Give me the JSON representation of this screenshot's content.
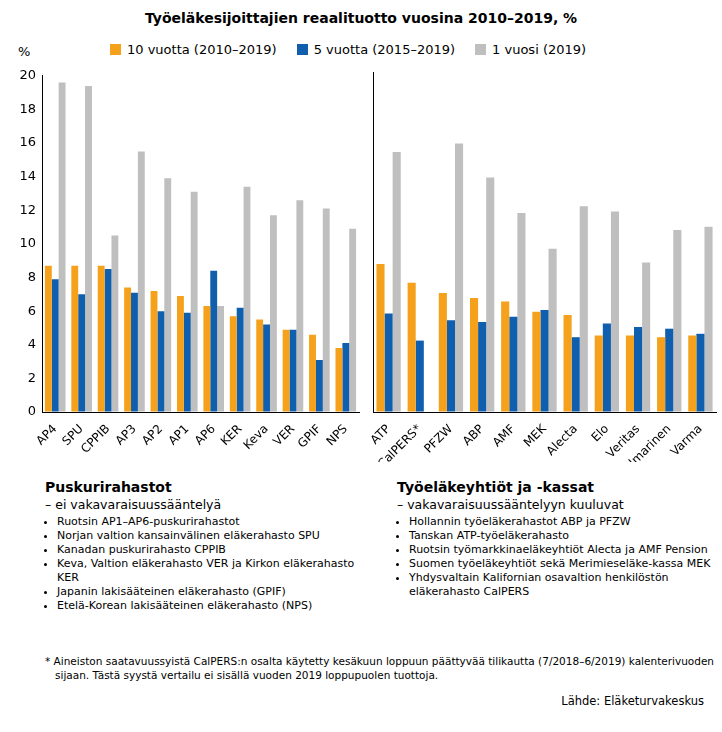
{
  "title": "Työeläkesijoittajien reaalituotto vuosina 2010–2019, %",
  "chart_data": [
    {
      "type": "bar",
      "ylabel": "%",
      "categories": [
        "AP4",
        "SPU",
        "CPPIB",
        "AP3",
        "AP2",
        "AP1",
        "AP6",
        "KER",
        "Keva",
        "VER",
        "GPIF",
        "NPS"
      ],
      "series": [
        {
          "name": "10 vuotta (2010–2019)",
          "color": "#f5a11c",
          "values": [
            8.7,
            8.7,
            8.7,
            7.4,
            7.2,
            6.9,
            6.3,
            5.7,
            5.5,
            4.9,
            4.6,
            3.8
          ]
        },
        {
          "name": "5 vuotta (2015–2019)",
          "color": "#0f5fae",
          "values": [
            7.9,
            7.0,
            8.5,
            7.1,
            6.0,
            5.9,
            8.4,
            6.2,
            5.2,
            4.9,
            3.1,
            4.1
          ]
        },
        {
          "name": "1 vuosi (2019)",
          "color": "#bfbfbf",
          "values": [
            19.6,
            19.4,
            10.5,
            15.5,
            13.9,
            13.1,
            6.3,
            13.4,
            11.7,
            12.6,
            12.1,
            10.9
          ]
        }
      ],
      "ylim": [
        0,
        20
      ],
      "yticks": [
        0,
        2,
        4,
        6,
        8,
        10,
        12,
        14,
        16,
        18,
        20
      ],
      "grid": false,
      "legend": "top",
      "caption": {
        "title": "Puskurirahastot",
        "subtitle": "– ei vakavaraisuussääntelyä",
        "items": [
          "Ruotsin AP1–AP6-puskurirahastot",
          "Norjan valtion kansainvälinen eläkerahasto SPU",
          "Kanadan puskurirahasto CPPIB",
          "Keva, Valtion eläkerahasto VER ja Kirkon eläkerahasto KER",
          "Japanin lakisääteinen eläkerahasto (GPIF)",
          "Etelä-Korean lakisääteinen eläkerahasto (NPS)"
        ]
      }
    },
    {
      "type": "bar",
      "categories": [
        "ATP",
        "CalPERS*",
        "PFZW",
        "ABP",
        "AMF",
        "MEK",
        "Alecta",
        "Elo",
        "Veritas",
        "Ilmarinen",
        "Varma"
      ],
      "series": [
        {
          "name": "10 vuotta (2010–2019)",
          "color": "#f5a11c",
          "values": [
            8.7,
            7.6,
            7.0,
            6.7,
            6.5,
            5.9,
            5.7,
            4.5,
            4.5,
            4.4,
            4.5
          ]
        },
        {
          "name": "5 vuotta (2015–2019)",
          "color": "#0f5fae",
          "values": [
            5.8,
            4.2,
            5.4,
            5.3,
            5.6,
            6.0,
            4.4,
            5.2,
            5.0,
            4.9,
            4.6
          ]
        },
        {
          "name": "1 vuosi (2019)",
          "color": "#bfbfbf",
          "values": [
            15.3,
            null,
            15.8,
            13.8,
            11.7,
            9.6,
            12.1,
            11.8,
            8.8,
            10.7,
            10.9
          ]
        }
      ],
      "ylim": [
        0,
        20
      ],
      "yticks": [
        0,
        2,
        4,
        6,
        8,
        10,
        12,
        14,
        16,
        18,
        20
      ],
      "grid": false,
      "tick_labels": "x",
      "caption": {
        "title": "Työeläkeyhtiöt ja -kassat",
        "subtitle": "– vakavaraisuussääntelyyn kuuluvat",
        "items": [
          "Hollannin työeläkerahastot ABP ja PFZW",
          "Tanskan ATP-työeläkerahasto",
          "Ruotsin työmarkkinaeläkeyhtiöt Alecta ja AMF Pension",
          "Suomen työeläkeyhtiöt sekä Merimieseläke-kassa MEK",
          "Yhdysvaltain Kalifornian osavaltion henkilöstön eläkerahasto CalPERS"
        ]
      }
    }
  ],
  "footnote": "* Aineiston saatavuussyistä CalPERS:n osalta käytetty kesäkuun loppuun päättyvää tilikautta (7/2018–6/2019) kalenterivuoden sijaan. Tästä syystä vertailu ei sisällä vuoden 2019 loppupuolen tuottoja.",
  "source": "Lähde: Eläketurvakeskus"
}
